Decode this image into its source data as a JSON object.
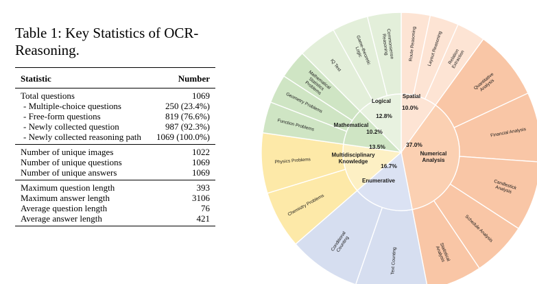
{
  "caption": "Table 1:  Key Statistics of OCR-Reasoning.",
  "table": {
    "headers": [
      "Statistic",
      "Number"
    ],
    "groups": [
      [
        {
          "label": "Total questions",
          "value": "1069",
          "indent": false
        },
        {
          "label": "- Multiple-choice questions",
          "value": "250 (23.4%)",
          "indent": true
        },
        {
          "label": "- Free-form questions",
          "value": "819 (76.6%)",
          "indent": true
        },
        {
          "label": "- Newly collected question",
          "value": "987 (92.3%)",
          "indent": true
        },
        {
          "label": "- Newly collected reasoning path",
          "value": "1069 (100.0%)",
          "indent": true
        }
      ],
      [
        {
          "label": "Number of unique images",
          "value": "1022",
          "indent": false
        },
        {
          "label": "Number of unique questions",
          "value": "1069",
          "indent": false
        },
        {
          "label": "Number of unique answers",
          "value": "1069",
          "indent": false
        }
      ],
      [
        {
          "label": "Maximum question length",
          "value": "393",
          "indent": false
        },
        {
          "label": "Maximum answer length",
          "value": "3106",
          "indent": false
        },
        {
          "label": "Average question length",
          "value": "76",
          "indent": false
        },
        {
          "label": "Average answer length",
          "value": "421",
          "indent": false
        }
      ]
    ]
  },
  "chart_data": {
    "type": "sunburst",
    "categories": [
      {
        "name": "Spatial",
        "percent": "10.0%",
        "fill": "#fde4d4",
        "outer_fill": "#fde4d4",
        "children": [
          "Route Reasoning",
          "Layout Reasoning",
          "Relation Extraction"
        ]
      },
      {
        "name": "Numerical Analysis",
        "percent": "37.0%",
        "fill": "#fbd0b2",
        "outer_fill": "#f9c6a6",
        "children": [
          "Quantitative Analysis",
          "Financial Analysis",
          "Candlestick Analysis",
          "Schedule Analysis",
          "Statistical Analysis"
        ]
      },
      {
        "name": "Enumerative",
        "percent": "16.7%",
        "fill": "#dbe2f3",
        "outer_fill": "#d6def0",
        "children": [
          "Text Counting",
          "Conditional Counting"
        ]
      },
      {
        "name": "Multidisciplinary Knowledge",
        "percent": "13.5%",
        "fill": "#fdf0c4",
        "outer_fill": "#fde9a8",
        "children": [
          "Chemistry Problems",
          "Physics Problems"
        ]
      },
      {
        "name": "Mathematical",
        "percent": "10.2%",
        "fill": "#cfe5c4",
        "outer_fill": "#cfe5c4",
        "children": [
          "Function Problems",
          "Geometry Problems",
          "Mathematical Statistics Problems"
        ]
      },
      {
        "name": "Logical",
        "percent": "12.8%",
        "fill": "#e8f2e0",
        "outer_fill": "#e3efda",
        "children": [
          "IQ Test",
          "Game-theoretic Logic",
          "Commonsense Reasoning"
        ]
      }
    ]
  }
}
